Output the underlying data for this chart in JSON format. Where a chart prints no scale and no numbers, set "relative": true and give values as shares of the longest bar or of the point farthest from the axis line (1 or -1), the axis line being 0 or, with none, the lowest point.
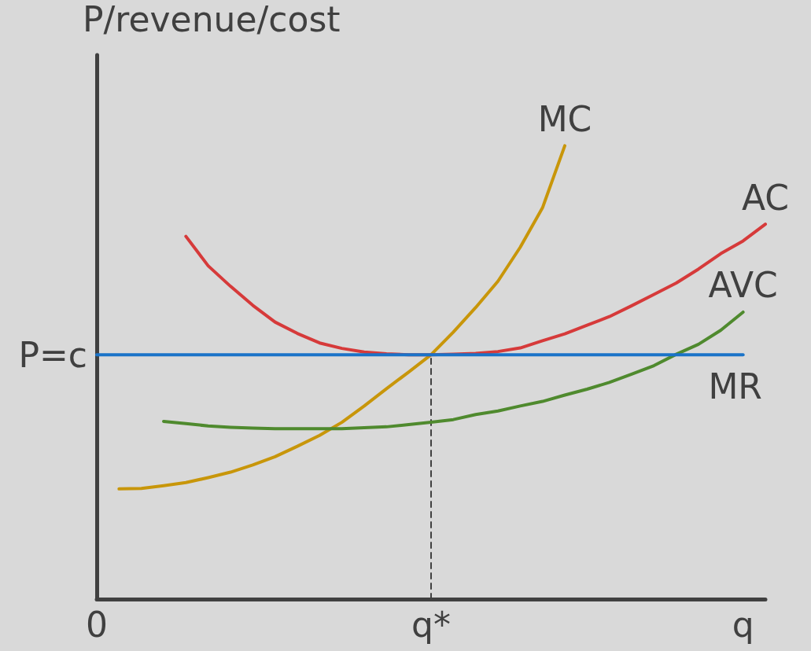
{
  "chart_data": {
    "type": "line",
    "relative": true,
    "ylabel": "P/revenue/cost",
    "marker": "none",
    "grid": false,
    "categories": [
      "0",
      null,
      null,
      null,
      null,
      null,
      null,
      null,
      null,
      null,
      null,
      null,
      null,
      null,
      null,
      "q*",
      null,
      null,
      null,
      null,
      null,
      null,
      null,
      null,
      null,
      null,
      null,
      null,
      null,
      "q",
      null
    ],
    "annotations": [
      {
        "text": "P=c",
        "x": "0",
        "y": 0.539
      }
    ],
    "series": [
      {
        "name": "MC",
        "color": "#c8960a",
        "values": [
          null,
          0.243,
          0.244,
          0.25,
          0.257,
          0.268,
          0.28,
          0.296,
          0.314,
          0.337,
          0.361,
          0.39,
          0.426,
          0.464,
          0.501,
          0.539,
          0.589,
          0.643,
          0.701,
          0.776,
          0.863,
          1.0,
          null,
          null,
          null,
          null,
          null,
          null,
          null,
          null,
          null
        ]
      },
      {
        "name": "AC",
        "color": "#d63a3a",
        "values": [
          null,
          null,
          null,
          null,
          0.8,
          0.735,
          0.69,
          0.648,
          0.611,
          0.586,
          0.565,
          0.553,
          0.545,
          0.541,
          0.539,
          0.539,
          0.54,
          0.542,
          0.546,
          0.554,
          0.57,
          0.585,
          0.604,
          0.623,
          0.647,
          0.672,
          0.697,
          0.728,
          0.762,
          0.79,
          0.827
        ]
      },
      {
        "name": "AVC",
        "color": "#4f8a2e",
        "values": [
          null,
          null,
          null,
          0.392,
          0.387,
          0.382,
          0.379,
          0.377,
          0.376,
          0.376,
          0.376,
          0.376,
          0.378,
          0.38,
          0.385,
          0.39,
          0.396,
          0.407,
          0.415,
          0.426,
          0.436,
          0.45,
          0.463,
          0.478,
          0.496,
          0.515,
          0.54,
          0.562,
          0.593,
          0.633,
          null
        ]
      },
      {
        "name": "MR",
        "color": "#1a73c8",
        "values": [
          0.539,
          0.539,
          0.539,
          0.539,
          0.539,
          0.539,
          0.539,
          0.539,
          0.539,
          0.539,
          0.539,
          0.539,
          0.539,
          0.539,
          0.539,
          0.539,
          0.539,
          0.539,
          0.539,
          0.539,
          0.539,
          0.539,
          0.539,
          0.539,
          0.539,
          0.539,
          0.539,
          0.539,
          0.539,
          0.539,
          null
        ]
      },
      {
        "color": "#404040",
        "line_style": "dashed",
        "x": [
          "q*",
          "q*"
        ],
        "values": [
          0,
          0.539
        ]
      }
    ]
  }
}
